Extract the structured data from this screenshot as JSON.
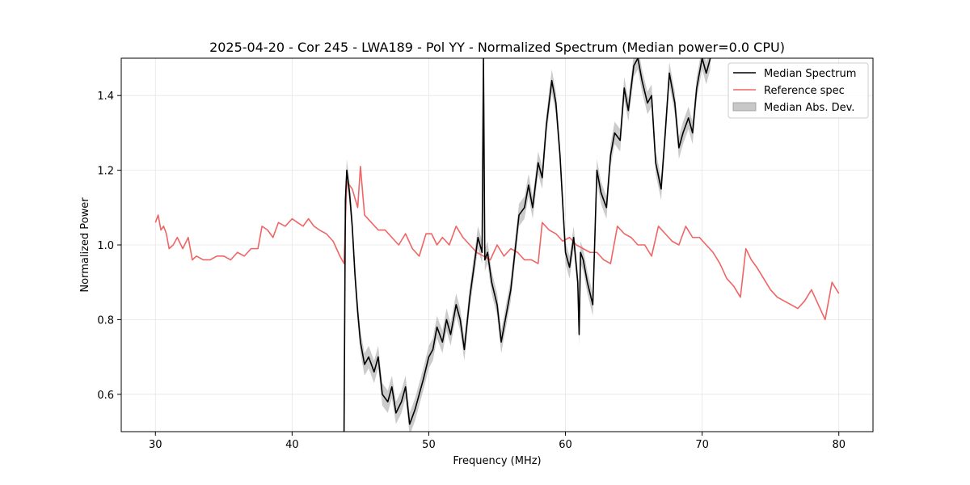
{
  "chart_data": {
    "type": "line",
    "title": "2025-04-20 - Cor 245 - LWA189 - Pol YY - Normalized Spectrum (Median power=0.0 CPU)",
    "xlabel": "Frequency (MHz)",
    "ylabel": "Normalized Power",
    "xlim": [
      27.5,
      82.5
    ],
    "ylim": [
      0.5,
      1.5
    ],
    "xticks": [
      30,
      40,
      50,
      60,
      70,
      80
    ],
    "xtick_labels": [
      "30",
      "40",
      "50",
      "60",
      "70",
      "80"
    ],
    "yticks": [
      0.6,
      0.8,
      1.0,
      1.2,
      1.4
    ],
    "ytick_labels": [
      "0.6",
      "0.8",
      "1.0",
      "1.2",
      "1.4"
    ],
    "grid": true,
    "legend_position": "top-right",
    "legend": [
      "Median Spectrum",
      "Reference spec",
      "Median Abs. Dev."
    ],
    "series": [
      {
        "name": "Median Spectrum",
        "color": "#000000",
        "x": [
          43.8,
          43.9,
          44.0,
          44.2,
          44.4,
          44.6,
          44.8,
          45.0,
          45.3,
          45.6,
          46.0,
          46.3,
          46.6,
          47.0,
          47.3,
          47.6,
          48.0,
          48.3,
          48.6,
          49.0,
          49.3,
          49.6,
          50.0,
          50.3,
          50.6,
          51.0,
          51.3,
          51.6,
          52.0,
          52.3,
          52.6,
          53.0,
          53.3,
          53.6,
          53.9,
          54.0,
          54.1,
          54.3,
          54.6,
          55.0,
          55.3,
          55.6,
          56.0,
          56.3,
          56.6,
          57.0,
          57.3,
          57.6,
          58.0,
          58.3,
          58.6,
          59.0,
          59.3,
          59.6,
          60.0,
          60.3,
          60.6,
          60.9,
          61.0,
          61.1,
          61.3,
          61.6,
          62.0,
          62.3,
          62.6,
          63.0,
          63.3,
          63.6,
          64.0,
          64.3,
          64.6,
          65.0,
          65.3,
          65.6,
          66.0,
          66.3,
          66.6,
          67.0,
          67.3,
          67.6,
          68.0,
          68.3,
          68.6,
          69.0,
          69.3,
          69.6,
          70.0,
          70.3,
          70.6
        ],
        "values": [
          0.5,
          1.12,
          1.2,
          1.14,
          1.05,
          0.92,
          0.82,
          0.74,
          0.68,
          0.7,
          0.66,
          0.7,
          0.6,
          0.58,
          0.62,
          0.55,
          0.58,
          0.62,
          0.52,
          0.56,
          0.6,
          0.64,
          0.7,
          0.72,
          0.78,
          0.74,
          0.8,
          0.76,
          0.84,
          0.8,
          0.72,
          0.86,
          0.94,
          1.02,
          0.98,
          1.5,
          0.96,
          0.98,
          0.9,
          0.84,
          0.74,
          0.8,
          0.88,
          0.98,
          1.08,
          1.1,
          1.16,
          1.1,
          1.22,
          1.18,
          1.32,
          1.44,
          1.38,
          1.24,
          0.98,
          0.94,
          1.02,
          0.9,
          0.76,
          0.98,
          0.96,
          0.9,
          0.84,
          1.2,
          1.14,
          1.1,
          1.24,
          1.3,
          1.28,
          1.42,
          1.36,
          1.48,
          1.5,
          1.44,
          1.38,
          1.4,
          1.22,
          1.15,
          1.3,
          1.46,
          1.38,
          1.26,
          1.3,
          1.34,
          1.3,
          1.42,
          1.5,
          1.46,
          1.5
        ]
      },
      {
        "name": "Reference spec",
        "color": "#f06464",
        "x": [
          30.0,
          30.2,
          30.4,
          30.6,
          30.8,
          31.0,
          31.3,
          31.6,
          32.0,
          32.4,
          32.7,
          33.0,
          33.5,
          34.0,
          34.5,
          35.0,
          35.5,
          36.0,
          36.5,
          37.0,
          37.5,
          37.8,
          38.2,
          38.6,
          39.0,
          39.5,
          40.0,
          40.4,
          40.8,
          41.2,
          41.6,
          42.0,
          42.5,
          43.0,
          43.5,
          43.8,
          44.0,
          44.4,
          44.8,
          45.0,
          45.3,
          45.8,
          46.3,
          46.8,
          47.3,
          47.8,
          48.3,
          48.8,
          49.3,
          49.8,
          50.2,
          50.6,
          51.0,
          51.5,
          52.0,
          52.5,
          53.0,
          53.5,
          54.0,
          54.5,
          55.0,
          55.5,
          56.0,
          56.5,
          57.0,
          57.5,
          58.0,
          58.3,
          58.8,
          59.3,
          59.8,
          60.3,
          60.8,
          61.3,
          61.8,
          62.3,
          62.8,
          63.3,
          63.8,
          64.3,
          64.8,
          65.3,
          65.8,
          66.3,
          66.8,
          67.3,
          67.8,
          68.3,
          68.8,
          69.3,
          69.8,
          70.3,
          70.8,
          71.3,
          71.8,
          72.3,
          72.8,
          73.2,
          73.6,
          74.0,
          74.5,
          75.0,
          75.5,
          76.0,
          76.5,
          77.0,
          77.5,
          78.0,
          78.5,
          79.0,
          79.5,
          80.0
        ],
        "values": [
          1.06,
          1.08,
          1.04,
          1.05,
          1.03,
          0.99,
          1.0,
          1.02,
          0.99,
          1.02,
          0.96,
          0.97,
          0.96,
          0.96,
          0.97,
          0.97,
          0.96,
          0.98,
          0.97,
          0.99,
          0.99,
          1.05,
          1.04,
          1.02,
          1.06,
          1.05,
          1.07,
          1.06,
          1.05,
          1.07,
          1.05,
          1.04,
          1.03,
          1.01,
          0.97,
          0.95,
          1.17,
          1.15,
          1.1,
          1.21,
          1.08,
          1.06,
          1.04,
          1.04,
          1.02,
          1.0,
          1.03,
          0.99,
          0.97,
          1.03,
          1.03,
          1.0,
          1.02,
          1.0,
          1.05,
          1.02,
          1.0,
          0.98,
          0.97,
          0.96,
          1.0,
          0.97,
          0.99,
          0.98,
          0.96,
          0.96,
          0.95,
          1.06,
          1.04,
          1.03,
          1.01,
          1.02,
          1.0,
          0.99,
          0.98,
          0.98,
          0.96,
          0.95,
          1.05,
          1.03,
          1.02,
          1.0,
          1.0,
          0.97,
          1.05,
          1.03,
          1.01,
          1.0,
          1.05,
          1.02,
          1.02,
          1.0,
          0.98,
          0.95,
          0.91,
          0.89,
          0.86,
          0.99,
          0.96,
          0.94,
          0.91,
          0.88,
          0.86,
          0.85,
          0.84,
          0.83,
          0.85,
          0.88,
          0.84,
          0.8,
          0.9,
          0.87
        ]
      }
    ],
    "band": {
      "name": "Median Abs. Dev.",
      "color": "#c8c8c8",
      "half_width": 0.03
    }
  }
}
